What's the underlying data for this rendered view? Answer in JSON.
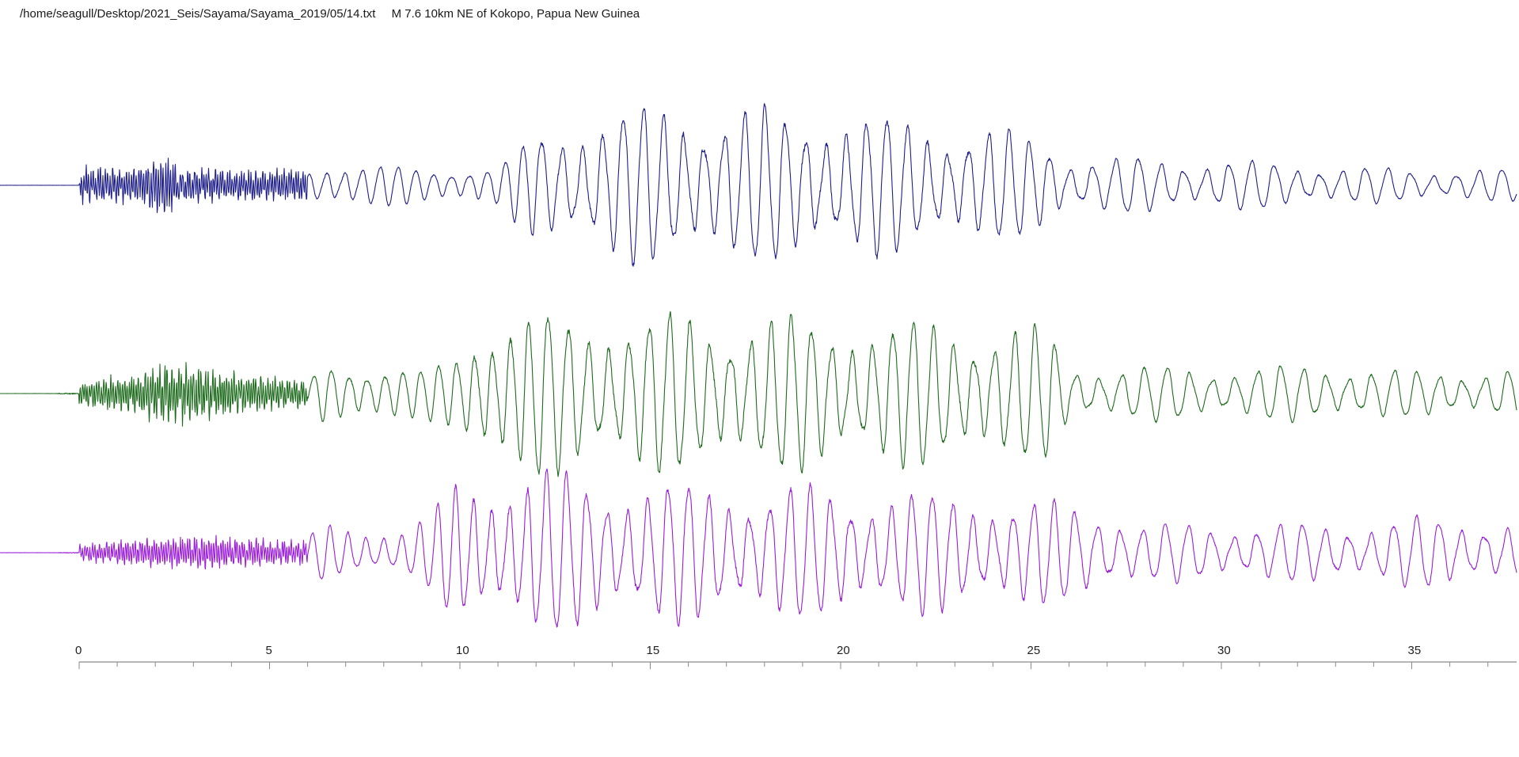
{
  "header": {
    "file_path": "/home/seagull/Desktop/2021_Seis/Sayama/Sayama_2019/05/14.txt",
    "event": "M 7.6 10km NE of Kokopo, Papua New Guinea"
  },
  "chart_data": {
    "type": "line",
    "title": "",
    "xlabel": "",
    "ylabel": "",
    "xlim": [
      0,
      38
    ],
    "x_ticks": [
      0,
      5,
      10,
      15,
      20,
      25,
      30,
      35
    ],
    "grid": false,
    "series": [
      {
        "color": "#1f1f8a",
        "clipped": true,
        "envelope": [
          [
            -2.1,
            0.03
          ],
          [
            0.0,
            0.03
          ],
          [
            0.05,
            0.55
          ],
          [
            1.5,
            0.5
          ],
          [
            2.3,
            0.95
          ],
          [
            2.6,
            0.5
          ],
          [
            6.0,
            0.45
          ],
          [
            6.3,
            0.75
          ],
          [
            9.0,
            0.55
          ],
          [
            11.0,
            0.6
          ],
          [
            12.0,
            1.7
          ],
          [
            14.0,
            2.4
          ],
          [
            16.0,
            2.5
          ],
          [
            20.0,
            2.3
          ],
          [
            24.0,
            1.75
          ],
          [
            25.5,
            1.5
          ],
          [
            26.0,
            0.9
          ],
          [
            30.0,
            0.8
          ],
          [
            34.0,
            0.55
          ],
          [
            36.0,
            0.5
          ],
          [
            38.0,
            0.5
          ]
        ]
      },
      {
        "color": "#1e6b1e",
        "clipped": true,
        "envelope": [
          [
            -2.1,
            0.02
          ],
          [
            -0.6,
            0.04
          ],
          [
            -0.5,
            0.25
          ],
          [
            0.0,
            0.35
          ],
          [
            1.5,
            0.6
          ],
          [
            2.3,
            1.0
          ],
          [
            3.5,
            0.7
          ],
          [
            6.0,
            0.4
          ],
          [
            6.5,
            1.1
          ],
          [
            9.0,
            0.7
          ],
          [
            9.8,
            1.2
          ],
          [
            10.5,
            2.4
          ],
          [
            12.5,
            2.5
          ],
          [
            19.0,
            2.4
          ],
          [
            21.0,
            2.3
          ],
          [
            24.0,
            2.2
          ],
          [
            25.5,
            2.0
          ],
          [
            26.0,
            0.9
          ],
          [
            30.0,
            0.8
          ],
          [
            33.0,
            0.9
          ],
          [
            35.0,
            0.7
          ],
          [
            38.0,
            0.8
          ]
        ]
      },
      {
        "color": "#9a1ed8",
        "clipped": true,
        "envelope": [
          [
            -2.1,
            0.03
          ],
          [
            -0.6,
            0.05
          ],
          [
            -0.5,
            0.12
          ],
          [
            0.0,
            0.25
          ],
          [
            1.0,
            0.35
          ],
          [
            3.0,
            0.5
          ],
          [
            6.0,
            0.35
          ],
          [
            6.3,
            0.9
          ],
          [
            8.5,
            0.7
          ],
          [
            9.3,
            1.2
          ],
          [
            9.8,
            2.2
          ],
          [
            12.0,
            2.6
          ],
          [
            15.0,
            2.2
          ],
          [
            20.0,
            2.0
          ],
          [
            24.0,
            1.8
          ],
          [
            27.0,
            1.4
          ],
          [
            28.0,
            0.9
          ],
          [
            33.0,
            0.9
          ],
          [
            35.0,
            1.1
          ],
          [
            38.0,
            1.0
          ]
        ]
      }
    ]
  }
}
